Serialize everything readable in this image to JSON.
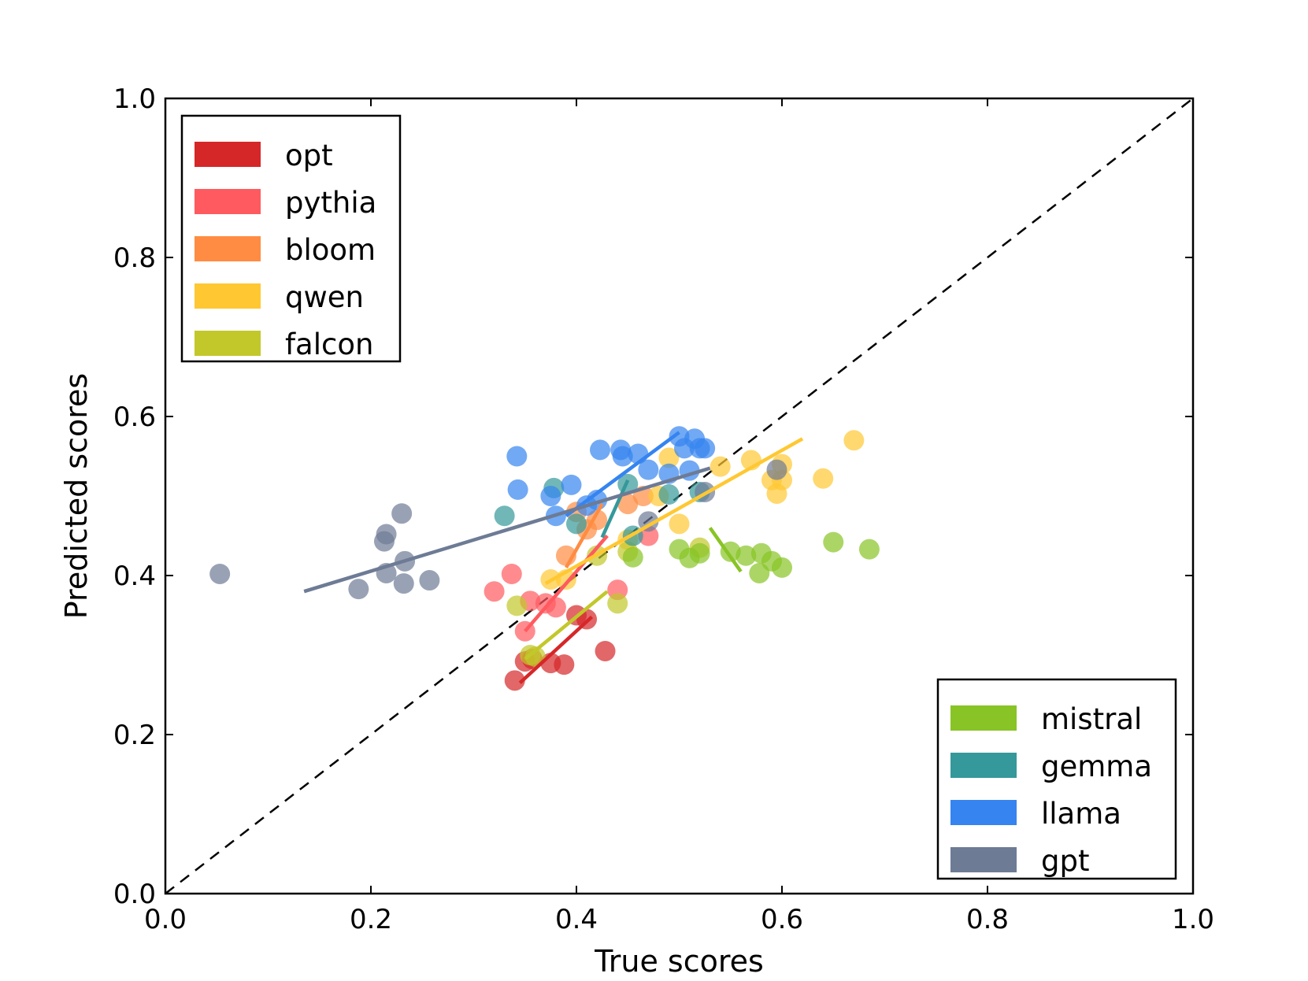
{
  "chart_data": {
    "type": "scatter",
    "xlabel": "True scores",
    "ylabel": "Predicted scores",
    "xlim": [
      0.0,
      1.0
    ],
    "ylim": [
      0.0,
      1.0
    ],
    "xticks": [
      "0.0",
      "0.2",
      "0.4",
      "0.6",
      "0.8",
      "1.0"
    ],
    "yticks": [
      "0.0",
      "0.2",
      "0.4",
      "0.6",
      "0.8",
      "1.0"
    ],
    "grid": false,
    "diagonal": {
      "from": [
        0,
        0
      ],
      "to": [
        1,
        1
      ],
      "style": "dashed",
      "color": "#000000"
    },
    "legends": [
      {
        "position": "top-left",
        "entries": [
          "opt",
          "pythia",
          "bloom",
          "qwen",
          "falcon"
        ]
      },
      {
        "position": "bottom-right",
        "entries": [
          "mistral",
          "gemma",
          "llama",
          "gpt"
        ]
      }
    ],
    "series": [
      {
        "name": "opt",
        "color": "#d62728",
        "points": [
          [
            0.34,
            0.268
          ],
          [
            0.35,
            0.292
          ],
          [
            0.357,
            0.295
          ],
          [
            0.375,
            0.29
          ],
          [
            0.388,
            0.288
          ],
          [
            0.4,
            0.35
          ],
          [
            0.41,
            0.345
          ],
          [
            0.428,
            0.305
          ]
        ],
        "fit": [
          [
            0.345,
            0.265
          ],
          [
            0.415,
            0.348
          ]
        ]
      },
      {
        "name": "pythia",
        "color": "#ff5a5f",
        "points": [
          [
            0.32,
            0.38
          ],
          [
            0.337,
            0.402
          ],
          [
            0.35,
            0.33
          ],
          [
            0.355,
            0.368
          ],
          [
            0.37,
            0.365
          ],
          [
            0.38,
            0.36
          ],
          [
            0.44,
            0.382
          ],
          [
            0.47,
            0.45
          ]
        ],
        "fit": [
          [
            0.35,
            0.33
          ],
          [
            0.43,
            0.45
          ]
        ]
      },
      {
        "name": "bloom",
        "color": "#ff8c42",
        "points": [
          [
            0.39,
            0.425
          ],
          [
            0.4,
            0.48
          ],
          [
            0.41,
            0.458
          ],
          [
            0.42,
            0.47
          ],
          [
            0.45,
            0.49
          ],
          [
            0.465,
            0.5
          ]
        ],
        "fit": [
          [
            0.39,
            0.41
          ],
          [
            0.425,
            0.49
          ]
        ]
      },
      {
        "name": "qwen",
        "color": "#ffc832",
        "points": [
          [
            0.375,
            0.395
          ],
          [
            0.39,
            0.395
          ],
          [
            0.45,
            0.445
          ],
          [
            0.48,
            0.5
          ],
          [
            0.49,
            0.548
          ],
          [
            0.5,
            0.465
          ],
          [
            0.54,
            0.537
          ],
          [
            0.57,
            0.545
          ],
          [
            0.59,
            0.52
          ],
          [
            0.6,
            0.52
          ],
          [
            0.6,
            0.54
          ],
          [
            0.595,
            0.503
          ],
          [
            0.64,
            0.522
          ],
          [
            0.67,
            0.57
          ]
        ],
        "fit": [
          [
            0.37,
            0.39
          ],
          [
            0.62,
            0.572
          ]
        ]
      },
      {
        "name": "falcon",
        "color": "#c2c82a",
        "points": [
          [
            0.342,
            0.362
          ],
          [
            0.355,
            0.3
          ],
          [
            0.36,
            0.298
          ],
          [
            0.42,
            0.425
          ],
          [
            0.44,
            0.365
          ],
          [
            0.45,
            0.43
          ],
          [
            0.52,
            0.435
          ]
        ],
        "fit": [
          [
            0.35,
            0.295
          ],
          [
            0.43,
            0.38
          ]
        ]
      },
      {
        "name": "mistral",
        "color": "#88c425",
        "points": [
          [
            0.455,
            0.423
          ],
          [
            0.5,
            0.433
          ],
          [
            0.51,
            0.422
          ],
          [
            0.52,
            0.428
          ],
          [
            0.55,
            0.43
          ],
          [
            0.565,
            0.425
          ],
          [
            0.58,
            0.428
          ],
          [
            0.578,
            0.403
          ],
          [
            0.59,
            0.418
          ],
          [
            0.6,
            0.41
          ],
          [
            0.65,
            0.442
          ],
          [
            0.685,
            0.433
          ]
        ],
        "fit": [
          [
            0.53,
            0.46
          ],
          [
            0.56,
            0.405
          ]
        ]
      },
      {
        "name": "gemma",
        "color": "#35989a",
        "points": [
          [
            0.33,
            0.475
          ],
          [
            0.378,
            0.51
          ],
          [
            0.4,
            0.465
          ],
          [
            0.45,
            0.515
          ],
          [
            0.455,
            0.45
          ],
          [
            0.49,
            0.502
          ],
          [
            0.52,
            0.505
          ]
        ],
        "fit": [
          [
            0.425,
            0.448
          ],
          [
            0.45,
            0.52
          ]
        ]
      },
      {
        "name": "llama",
        "color": "#3584f0",
        "points": [
          [
            0.342,
            0.55
          ],
          [
            0.343,
            0.508
          ],
          [
            0.375,
            0.5
          ],
          [
            0.38,
            0.475
          ],
          [
            0.395,
            0.514
          ],
          [
            0.41,
            0.488
          ],
          [
            0.42,
            0.495
          ],
          [
            0.423,
            0.558
          ],
          [
            0.443,
            0.558
          ],
          [
            0.445,
            0.55
          ],
          [
            0.46,
            0.553
          ],
          [
            0.47,
            0.533
          ],
          [
            0.49,
            0.528
          ],
          [
            0.5,
            0.575
          ],
          [
            0.505,
            0.56
          ],
          [
            0.51,
            0.532
          ],
          [
            0.515,
            0.572
          ],
          [
            0.52,
            0.56
          ],
          [
            0.525,
            0.56
          ]
        ],
        "fit": [
          [
            0.39,
            0.475
          ],
          [
            0.5,
            0.58
          ]
        ]
      },
      {
        "name": "gpt",
        "color": "#6d7b95",
        "points": [
          [
            0.053,
            0.402
          ],
          [
            0.188,
            0.383
          ],
          [
            0.213,
            0.443
          ],
          [
            0.215,
            0.452
          ],
          [
            0.215,
            0.403
          ],
          [
            0.23,
            0.478
          ],
          [
            0.232,
            0.39
          ],
          [
            0.233,
            0.418
          ],
          [
            0.257,
            0.394
          ],
          [
            0.47,
            0.468
          ],
          [
            0.525,
            0.505
          ],
          [
            0.595,
            0.533
          ]
        ],
        "fit": [
          [
            0.135,
            0.38
          ],
          [
            0.53,
            0.535
          ]
        ]
      }
    ]
  }
}
